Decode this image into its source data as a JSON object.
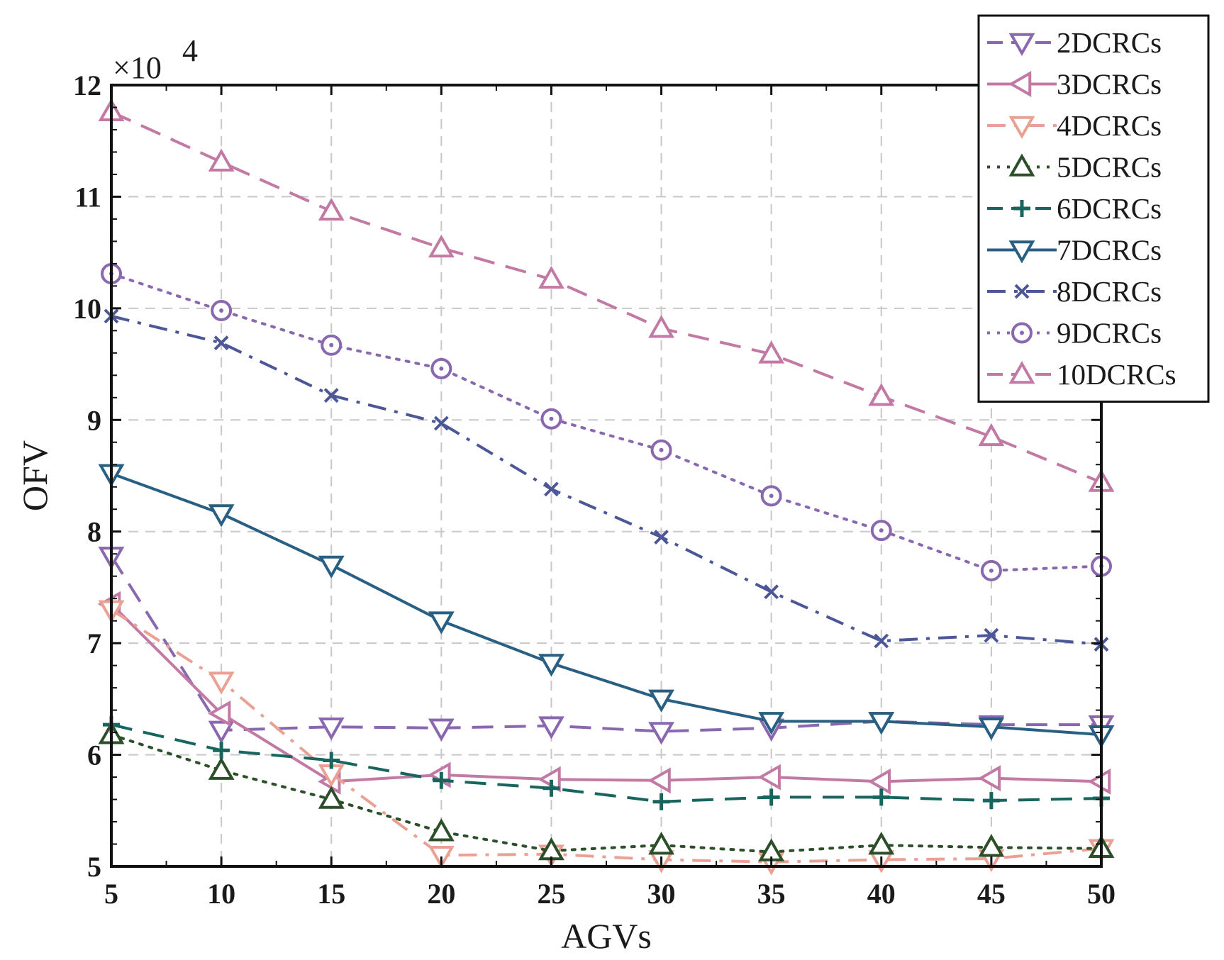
{
  "chart_data": {
    "type": "line",
    "title": "",
    "xlabel": "AGVs",
    "ylabel": "OFV",
    "y_multiplier": {
      "base": "×10",
      "exponent": "4"
    },
    "x": [
      5,
      10,
      15,
      20,
      25,
      30,
      35,
      40,
      45,
      50
    ],
    "x_ticks": [
      "5",
      "10",
      "15",
      "20",
      "25",
      "30",
      "35",
      "40",
      "45",
      "50"
    ],
    "y_ticks": [
      "5",
      "6",
      "7",
      "8",
      "9",
      "10",
      "11",
      "12"
    ],
    "xlim": [
      5,
      50
    ],
    "ylim": [
      5,
      12
    ],
    "grid": true,
    "legend_position": "top-right",
    "series": [
      {
        "name": "2DCRCs",
        "color": "#8a68b0",
        "dash": "dashed",
        "marker": "triangle-down",
        "values": [
          7.78,
          6.22,
          6.25,
          6.24,
          6.26,
          6.21,
          6.24,
          6.3,
          6.27,
          6.27
        ]
      },
      {
        "name": "3DCRCs",
        "color": "#c27aa4",
        "dash": "solid",
        "marker": "triangle-left",
        "values": [
          7.35,
          6.37,
          5.76,
          5.82,
          5.78,
          5.77,
          5.8,
          5.76,
          5.79,
          5.76
        ]
      },
      {
        "name": "4DCRCs",
        "color": "#eaa193",
        "dash": "dashdot",
        "marker": "triangle-down",
        "values": [
          7.3,
          6.66,
          5.83,
          5.1,
          5.11,
          5.06,
          5.04,
          5.06,
          5.07,
          5.16
        ]
      },
      {
        "name": "5DCRCs",
        "color": "#2c4f2a",
        "dash": "dotted",
        "marker": "triangle-up",
        "values": [
          6.18,
          5.86,
          5.6,
          5.31,
          5.14,
          5.19,
          5.13,
          5.19,
          5.17,
          5.16
        ]
      },
      {
        "name": "6DCRCs",
        "color": "#17655e",
        "dash": "dashed",
        "marker": "plus",
        "values": [
          6.27,
          6.04,
          5.95,
          5.77,
          5.7,
          5.58,
          5.62,
          5.62,
          5.59,
          5.61
        ]
      },
      {
        "name": "7DCRCs",
        "color": "#285f82",
        "dash": "solid",
        "marker": "triangle-down",
        "values": [
          8.52,
          8.16,
          7.7,
          7.2,
          6.82,
          6.5,
          6.3,
          6.3,
          6.25,
          6.18
        ]
      },
      {
        "name": "8DCRCs",
        "color": "#4c5797",
        "dash": "dashdot",
        "marker": "x",
        "values": [
          9.93,
          9.69,
          9.22,
          8.97,
          8.38,
          7.95,
          7.46,
          7.02,
          7.07,
          6.99
        ]
      },
      {
        "name": "9DCRCs",
        "color": "#8a68b0",
        "dash": "dotted",
        "marker": "circle",
        "values": [
          10.31,
          9.98,
          9.67,
          9.46,
          9.01,
          8.73,
          8.32,
          8.01,
          7.65,
          7.69
        ]
      },
      {
        "name": "10DCRCs",
        "color": "#c27aa4",
        "dash": "dashed",
        "marker": "triangle-up",
        "values": [
          11.76,
          11.31,
          10.87,
          10.54,
          10.26,
          9.82,
          9.59,
          9.21,
          8.85,
          8.44
        ]
      }
    ]
  }
}
